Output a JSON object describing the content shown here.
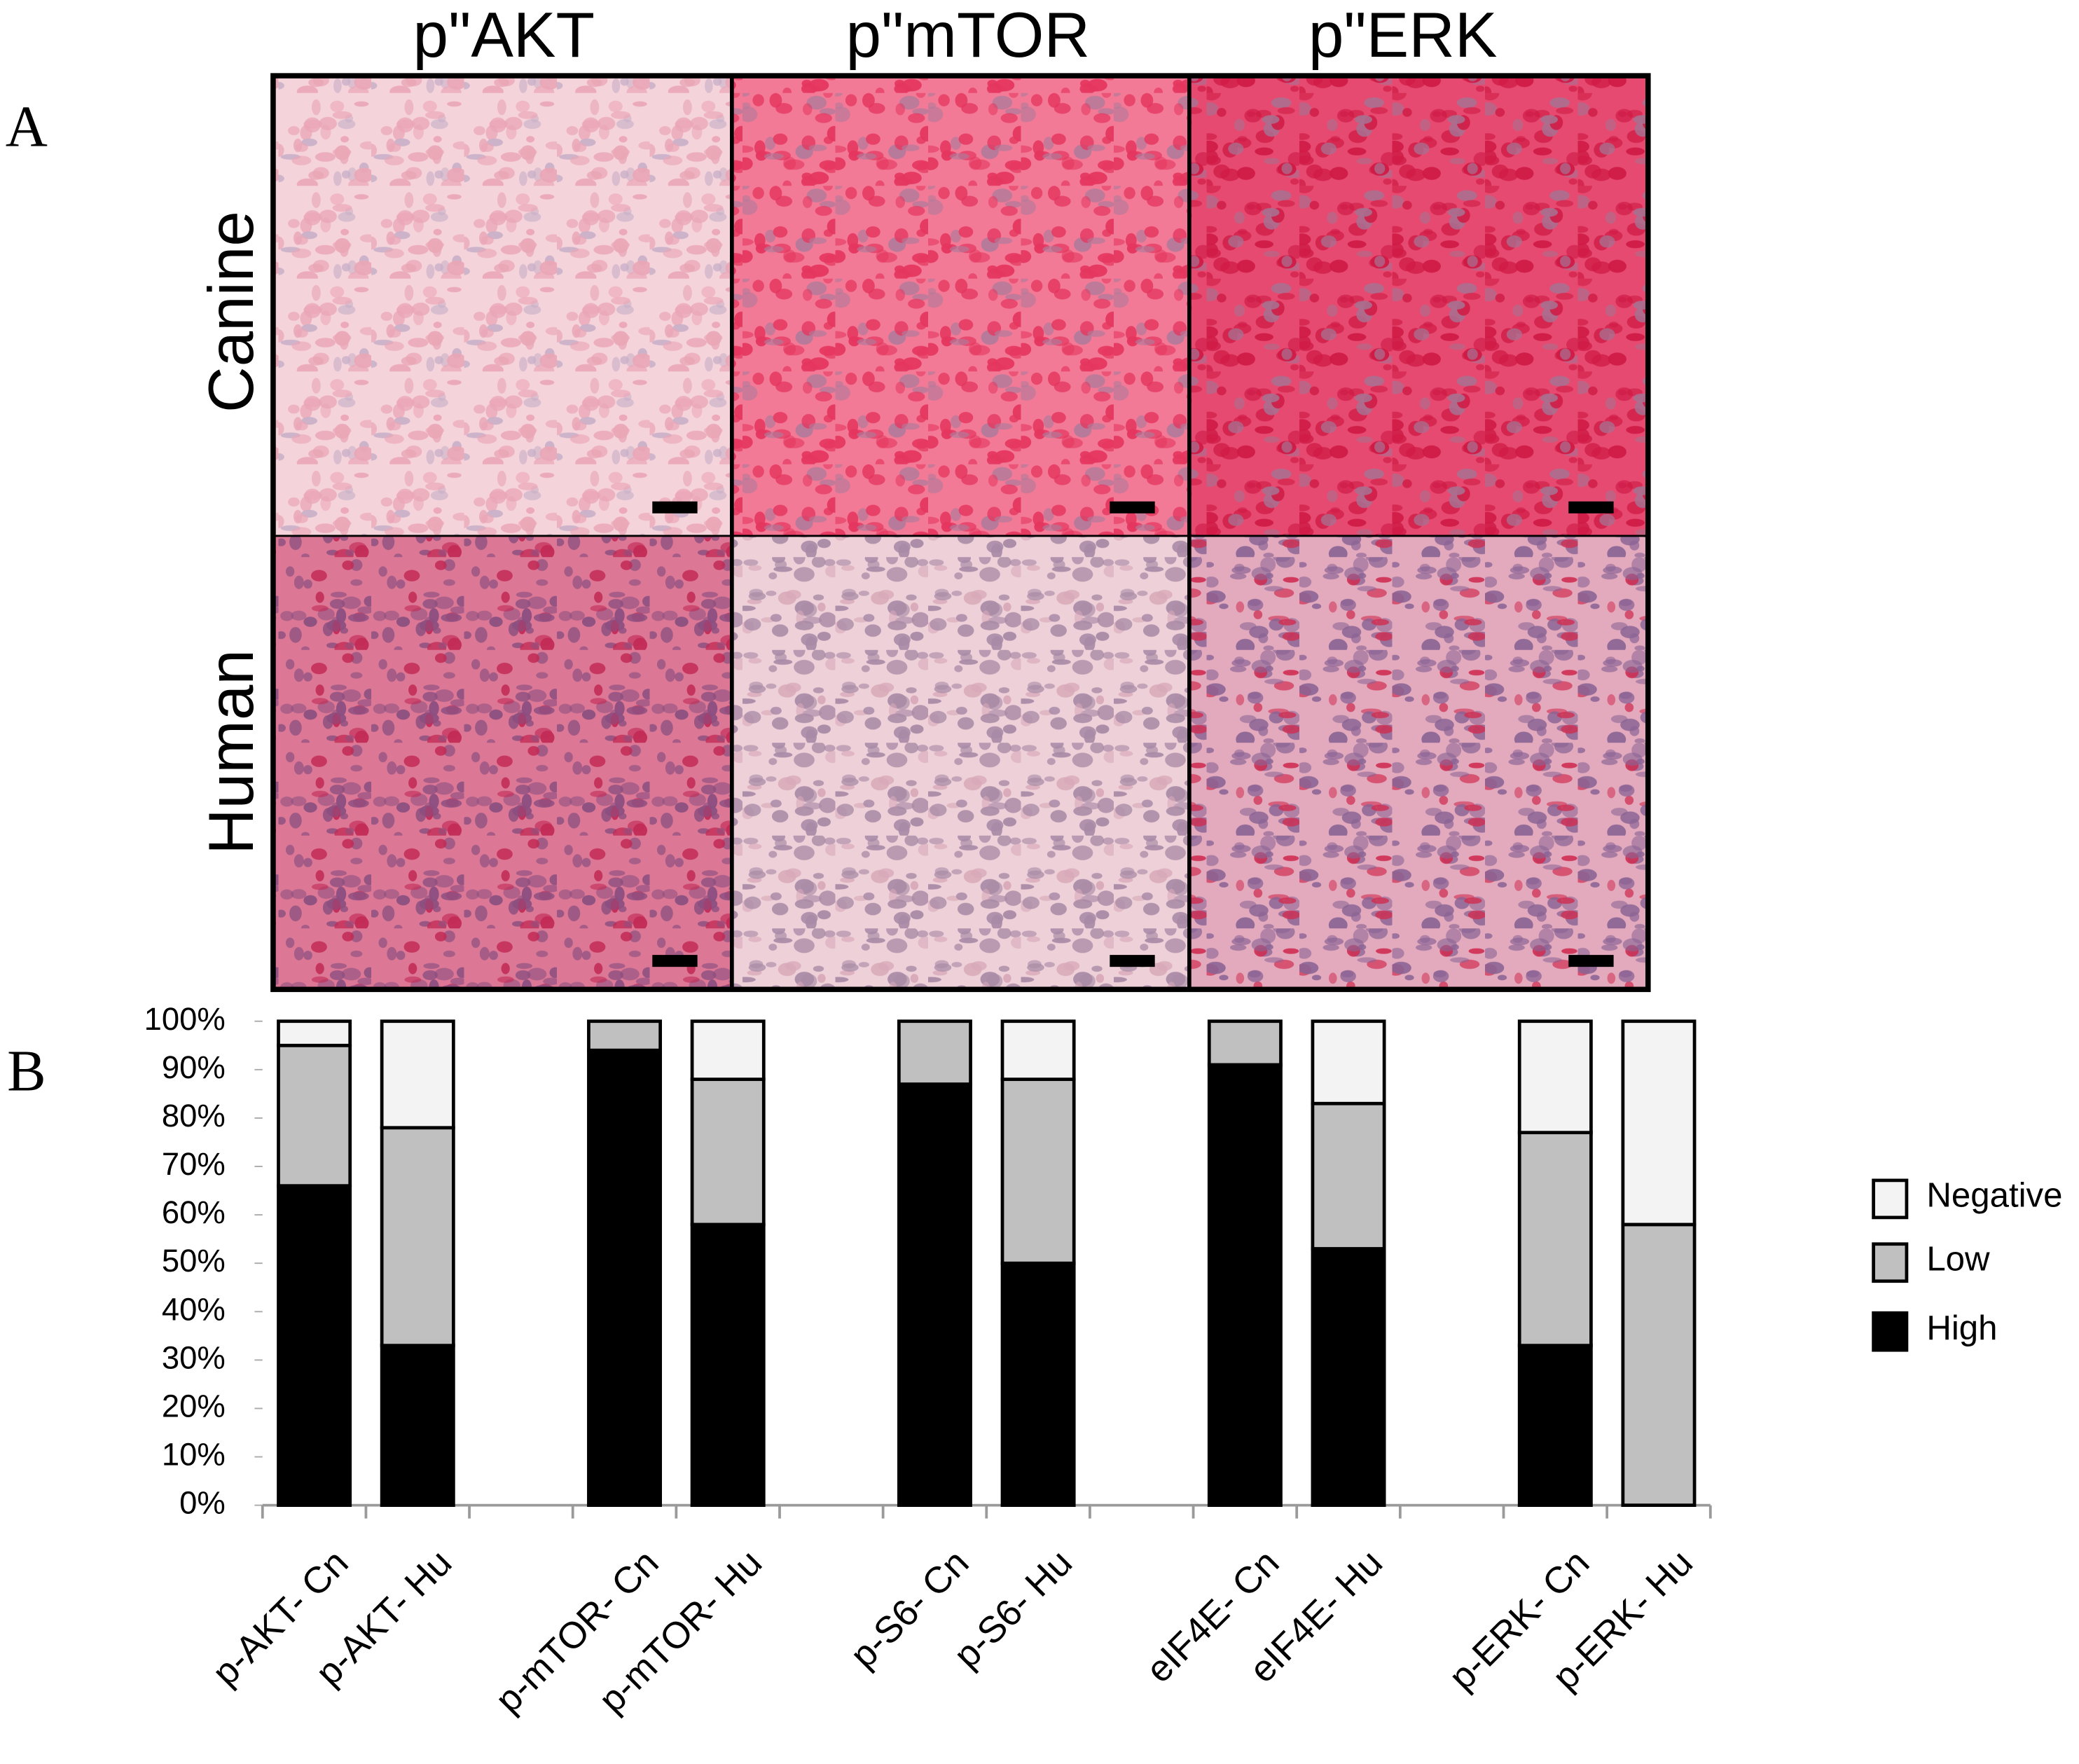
{
  "panel_labels": [
    "A",
    "B"
  ],
  "images": {
    "columns": [
      "p\"AKT",
      "p\"mTOR",
      "p\"ERK"
    ],
    "rows": [
      "Canine",
      "Human"
    ]
  },
  "chart_data": {
    "type": "stacked-bar",
    "categories": [
      "p-AKT- Cn",
      "p-AKT- Hu",
      null,
      "p-mTOR- Cn",
      "p-mTOR- Hu",
      null,
      "p-S6- Cn",
      "p-S6- Hu",
      null,
      "eIF4E- Cn",
      "eIF4E- Hu",
      null,
      "p-ERK- Cn",
      "p-ERK- Hu"
    ],
    "series": [
      {
        "name": "High",
        "color": "#000000",
        "values": [
          66,
          33,
          null,
          94,
          58,
          null,
          87,
          50,
          null,
          91,
          53,
          null,
          33,
          0
        ]
      },
      {
        "name": "Low",
        "color": "#c0c0c0",
        "values": [
          29,
          45,
          null,
          6,
          30,
          null,
          13,
          38,
          null,
          9,
          30,
          null,
          44,
          58
        ]
      },
      {
        "name": "Negative",
        "color": "#f3f3f3",
        "values": [
          5,
          22,
          null,
          0,
          12,
          null,
          0,
          12,
          null,
          0,
          17,
          null,
          23,
          42
        ]
      }
    ],
    "ylim": [
      0,
      100
    ],
    "yticks": [
      {
        "value": 0,
        "label": "0%"
      },
      {
        "value": 10,
        "label": "10%"
      },
      {
        "value": 20,
        "label": "20%"
      },
      {
        "value": 30,
        "label": "30%"
      },
      {
        "value": 40,
        "label": "40%"
      },
      {
        "value": 50,
        "label": "50%"
      },
      {
        "value": 60,
        "label": "60%"
      },
      {
        "value": 70,
        "label": "70%"
      },
      {
        "value": 80,
        "label": "80%"
      },
      {
        "value": 90,
        "label": "90%"
      },
      {
        "value": 100,
        "label": "100%"
      }
    ],
    "legend": "right"
  }
}
